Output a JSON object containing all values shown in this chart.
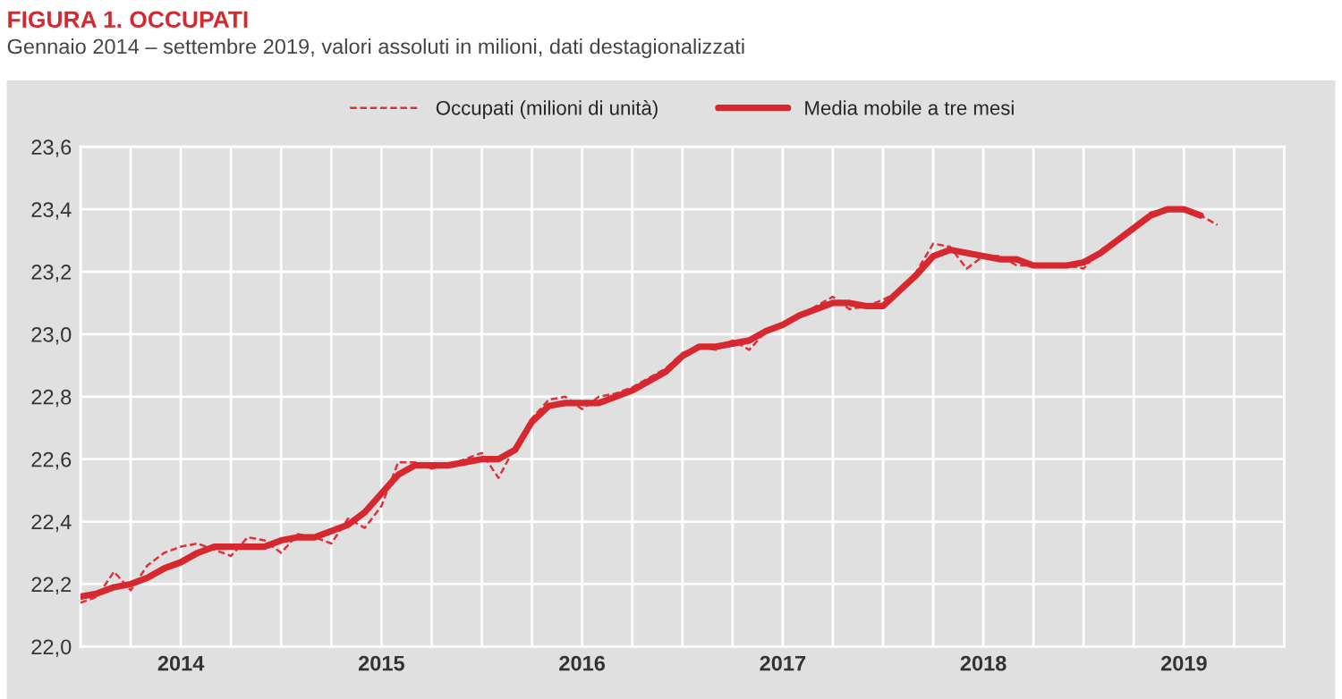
{
  "chart_data": {
    "type": "line",
    "title": "FIGURA 1. OCCUPATI",
    "subtitle": "Gennaio 2014 – settembre 2019, valori assoluti in milioni, dati destagionalizzati",
    "series": [
      {
        "name": "Occupati (milioni di unità)",
        "color": "#e0303a",
        "line_style": "dashed",
        "x": [
          "2014-01",
          "2014-02",
          "2014-03",
          "2014-04",
          "2014-05",
          "2014-06",
          "2014-07",
          "2014-08",
          "2014-09",
          "2014-10",
          "2014-11",
          "2014-12",
          "2015-01",
          "2015-02",
          "2015-03",
          "2015-04",
          "2015-05",
          "2015-06",
          "2015-07",
          "2015-08",
          "2015-09",
          "2015-10",
          "2015-11",
          "2015-12",
          "2016-01",
          "2016-02",
          "2016-03",
          "2016-04",
          "2016-05",
          "2016-06",
          "2016-07",
          "2016-08",
          "2016-09",
          "2016-10",
          "2016-11",
          "2016-12",
          "2017-01",
          "2017-02",
          "2017-03",
          "2017-04",
          "2017-05",
          "2017-06",
          "2017-07",
          "2017-08",
          "2017-09",
          "2017-10",
          "2017-11",
          "2017-12",
          "2018-01",
          "2018-02",
          "2018-03",
          "2018-04",
          "2018-05",
          "2018-06",
          "2018-07",
          "2018-08",
          "2018-09",
          "2018-10",
          "2018-11",
          "2018-12",
          "2019-01",
          "2019-02",
          "2019-03",
          "2019-04",
          "2019-05",
          "2019-06",
          "2019-07",
          "2019-08",
          "2019-09"
        ],
        "values": [
          22.14,
          22.16,
          22.24,
          22.18,
          22.26,
          22.3,
          22.32,
          22.33,
          22.31,
          22.29,
          22.35,
          22.34,
          22.3,
          22.36,
          22.35,
          22.33,
          22.41,
          22.38,
          22.45,
          22.59,
          22.59,
          22.57,
          22.58,
          22.6,
          22.62,
          22.54,
          22.64,
          22.73,
          22.79,
          22.8,
          22.76,
          22.8,
          22.81,
          22.83,
          22.86,
          22.89,
          22.94,
          22.96,
          22.95,
          22.98,
          22.95,
          23.01,
          23.03,
          23.06,
          23.09,
          23.12,
          23.08,
          23.09,
          23.11,
          23.14,
          23.2,
          23.29,
          23.28,
          23.21,
          23.25,
          23.25,
          23.22,
          23.22,
          23.22,
          23.22,
          23.21,
          23.27,
          23.3,
          23.34,
          23.39,
          23.4,
          23.4,
          23.38,
          23.35
        ]
      },
      {
        "name": "Media mobile a tre mesi",
        "color": "#d7282f",
        "line_style": "solid",
        "x": [
          "2014-01",
          "2014-02",
          "2014-03",
          "2014-04",
          "2014-05",
          "2014-06",
          "2014-07",
          "2014-08",
          "2014-09",
          "2014-10",
          "2014-11",
          "2014-12",
          "2015-01",
          "2015-02",
          "2015-03",
          "2015-04",
          "2015-05",
          "2015-06",
          "2015-07",
          "2015-08",
          "2015-09",
          "2015-10",
          "2015-11",
          "2015-12",
          "2016-01",
          "2016-02",
          "2016-03",
          "2016-04",
          "2016-05",
          "2016-06",
          "2016-07",
          "2016-08",
          "2016-09",
          "2016-10",
          "2016-11",
          "2016-12",
          "2017-01",
          "2017-02",
          "2017-03",
          "2017-04",
          "2017-05",
          "2017-06",
          "2017-07",
          "2017-08",
          "2017-09",
          "2017-10",
          "2017-11",
          "2017-12",
          "2018-01",
          "2018-02",
          "2018-03",
          "2018-04",
          "2018-05",
          "2018-06",
          "2018-07",
          "2018-08",
          "2018-09",
          "2018-10",
          "2018-11",
          "2018-12",
          "2019-01",
          "2019-02",
          "2019-03",
          "2019-04",
          "2019-05",
          "2019-06",
          "2019-07",
          "2019-08"
        ],
        "values": [
          22.16,
          22.17,
          22.19,
          22.2,
          22.22,
          22.25,
          22.27,
          22.3,
          22.32,
          22.32,
          22.32,
          22.32,
          22.34,
          22.35,
          22.35,
          22.37,
          22.39,
          22.43,
          22.49,
          22.55,
          22.58,
          22.58,
          22.58,
          22.59,
          22.6,
          22.6,
          22.63,
          22.72,
          22.77,
          22.78,
          22.78,
          22.78,
          22.8,
          22.82,
          22.85,
          22.88,
          22.93,
          22.96,
          22.96,
          22.97,
          22.98,
          23.01,
          23.03,
          23.06,
          23.08,
          23.1,
          23.1,
          23.09,
          23.09,
          23.14,
          23.19,
          23.25,
          23.27,
          23.26,
          23.25,
          23.24,
          23.24,
          23.22,
          23.22,
          23.22,
          23.23,
          23.26,
          23.3,
          23.34,
          23.38,
          23.4,
          23.4,
          23.38
        ]
      }
    ],
    "xlim": [
      "2014-01",
      "2020-01"
    ],
    "xticks": [
      {
        "value": "2014-01",
        "label": null
      },
      {
        "value": "2014-04",
        "label": null
      },
      {
        "value": "2014-07",
        "label": "2014"
      },
      {
        "value": "2014-10",
        "label": null
      },
      {
        "value": "2015-01",
        "label": null
      },
      {
        "value": "2015-04",
        "label": null
      },
      {
        "value": "2015-07",
        "label": "2015"
      },
      {
        "value": "2015-10",
        "label": null
      },
      {
        "value": "2016-01",
        "label": null
      },
      {
        "value": "2016-04",
        "label": null
      },
      {
        "value": "2016-07",
        "label": "2016"
      },
      {
        "value": "2016-10",
        "label": null
      },
      {
        "value": "2017-01",
        "label": null
      },
      {
        "value": "2017-04",
        "label": null
      },
      {
        "value": "2017-07",
        "label": "2017"
      },
      {
        "value": "2017-10",
        "label": null
      },
      {
        "value": "2018-01",
        "label": null
      },
      {
        "value": "2018-04",
        "label": null
      },
      {
        "value": "2018-07",
        "label": "2018"
      },
      {
        "value": "2018-10",
        "label": null
      },
      {
        "value": "2019-01",
        "label": null
      },
      {
        "value": "2019-04",
        "label": null
      },
      {
        "value": "2019-07",
        "label": "2019"
      },
      {
        "value": "2019-10",
        "label": null
      },
      {
        "value": "2020-01",
        "label": null
      }
    ],
    "ylim": [
      22.0,
      23.6
    ],
    "yticks": [
      {
        "value": 22.0,
        "label": "22,0"
      },
      {
        "value": 22.2,
        "label": "22,2"
      },
      {
        "value": 22.4,
        "label": "22,4"
      },
      {
        "value": 22.6,
        "label": "22,6"
      },
      {
        "value": 22.8,
        "label": "22,8"
      },
      {
        "value": 23.0,
        "label": "23,0"
      },
      {
        "value": 23.2,
        "label": "23,2"
      },
      {
        "value": 23.4,
        "label": "23,4"
      },
      {
        "value": 23.6,
        "label": "23,6"
      }
    ],
    "grid": true,
    "legend": "top",
    "marker": "none"
  }
}
